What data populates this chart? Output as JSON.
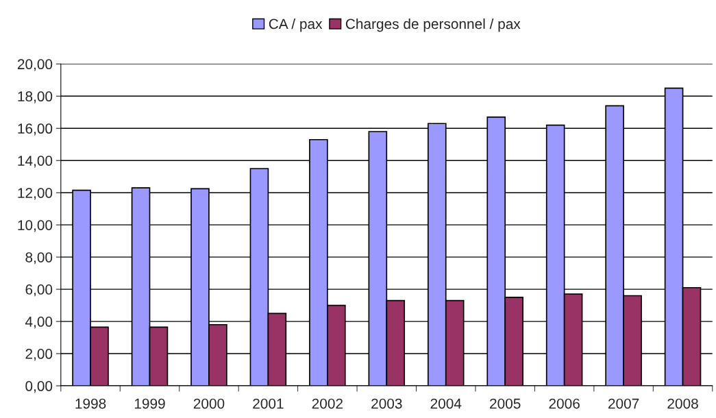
{
  "chart_data": {
    "type": "bar",
    "categories": [
      "1998",
      "1999",
      "2000",
      "2001",
      "2002",
      "2003",
      "2004",
      "2005",
      "2006",
      "2007",
      "2008"
    ],
    "series": [
      {
        "name": "CA / pax",
        "color": "#9999ff",
        "values": [
          12.15,
          12.3,
          12.25,
          13.5,
          15.3,
          15.8,
          16.3,
          16.7,
          16.2,
          17.4,
          18.5
        ]
      },
      {
        "name": "Charges de personnel / pax",
        "color": "#993366",
        "values": [
          3.65,
          3.65,
          3.8,
          4.5,
          5.0,
          5.3,
          5.3,
          5.5,
          5.7,
          5.6,
          6.1
        ]
      }
    ],
    "ylim": [
      0,
      20
    ],
    "yticks": [
      {
        "value": 0,
        "label": "0,00"
      },
      {
        "value": 2,
        "label": "2,00"
      },
      {
        "value": 4,
        "label": "4,00"
      },
      {
        "value": 6,
        "label": "6,00"
      },
      {
        "value": 8,
        "label": "8,00"
      },
      {
        "value": 10,
        "label": "10,00"
      },
      {
        "value": 12,
        "label": "12,00"
      },
      {
        "value": 14,
        "label": "14,00"
      },
      {
        "value": 16,
        "label": "16,00"
      },
      {
        "value": 18,
        "label": "18,00"
      },
      {
        "value": 20,
        "label": "20,00"
      }
    ],
    "grid": "y",
    "legend": "top"
  }
}
